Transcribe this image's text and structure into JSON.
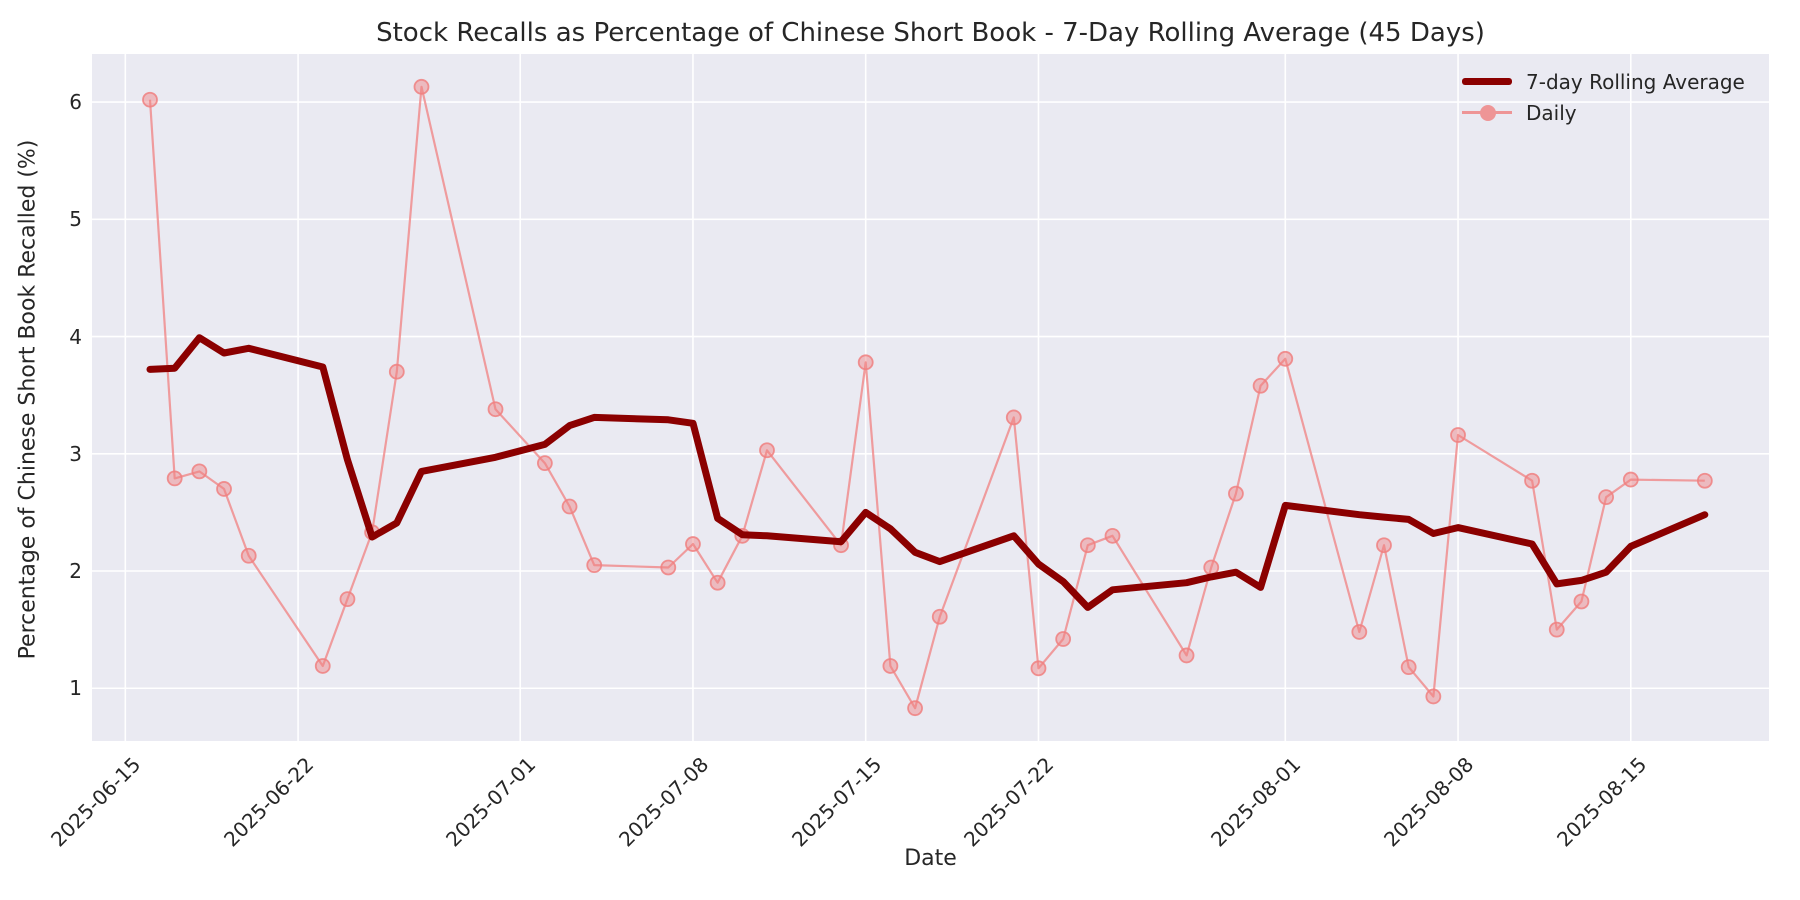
{
  "chart_data": {
    "type": "line",
    "title": "Stock Recalls as Percentage of Chinese Short Book - 7-Day Rolling Average (45 Days)",
    "xlabel": "Date",
    "ylabel": "Percentage of Chinese Short Book Recalled (%)",
    "legend_position": "upper right",
    "grid": true,
    "plot_background": "#eaeaf2",
    "gridline_color": "#ffffff",
    "text_color": "#262626",
    "x_epoch": "2025-06-15",
    "xlim_days_from_epoch": [
      -1.35,
      66.6
    ],
    "ylim": [
      0.55,
      6.41
    ],
    "y_ticks": [
      1,
      2,
      3,
      4,
      5,
      6
    ],
    "x_ticks": [
      "2025-06-15",
      "2025-06-22",
      "2025-07-01",
      "2025-07-08",
      "2025-07-15",
      "2025-07-22",
      "2025-08-01",
      "2025-08-08",
      "2025-08-15"
    ],
    "dates": [
      "2025-06-16",
      "2025-06-17",
      "2025-06-18",
      "2025-06-19",
      "2025-06-20",
      "2025-06-23",
      "2025-06-24",
      "2025-06-25",
      "2025-06-26",
      "2025-06-27",
      "2025-06-30",
      "2025-07-02",
      "2025-07-03",
      "2025-07-04",
      "2025-07-07",
      "2025-07-08",
      "2025-07-09",
      "2025-07-10",
      "2025-07-11",
      "2025-07-14",
      "2025-07-15",
      "2025-07-16",
      "2025-07-17",
      "2025-07-18",
      "2025-07-21",
      "2025-07-22",
      "2025-07-23",
      "2025-07-24",
      "2025-07-25",
      "2025-07-28",
      "2025-07-29",
      "2025-07-30",
      "2025-07-31",
      "2025-08-01",
      "2025-08-04",
      "2025-08-05",
      "2025-08-06",
      "2025-08-07",
      "2025-08-08",
      "2025-08-11",
      "2025-08-12",
      "2025-08-13",
      "2025-08-14",
      "2025-08-15",
      "2025-08-18"
    ],
    "series": [
      {
        "name": "7-day Rolling Average",
        "color": "#8b0000",
        "line_width": 7,
        "marker": "none",
        "values": [
          3.72,
          3.73,
          3.99,
          3.86,
          3.9,
          3.74,
          2.95,
          2.29,
          2.41,
          2.85,
          2.97,
          3.08,
          3.24,
          3.31,
          3.29,
          3.26,
          2.45,
          2.31,
          2.3,
          2.25,
          2.5,
          2.36,
          2.16,
          2.08,
          2.3,
          2.06,
          1.91,
          1.69,
          1.84,
          1.9,
          1.95,
          1.99,
          1.86,
          2.56,
          2.48,
          2.46,
          2.44,
          2.32,
          2.37,
          2.23,
          1.89,
          1.92,
          1.99,
          2.21,
          2.48
        ]
      },
      {
        "name": "Daily",
        "color": "#f08080",
        "opacity": 0.75,
        "line_width": 2.2,
        "marker": "circle",
        "marker_size": 7,
        "values": [
          6.02,
          2.79,
          2.85,
          2.7,
          2.13,
          1.19,
          1.76,
          2.33,
          3.7,
          6.13,
          3.38,
          2.92,
          2.55,
          2.05,
          2.03,
          2.23,
          1.9,
          2.3,
          3.03,
          2.22,
          3.78,
          1.19,
          0.83,
          1.61,
          3.31,
          1.17,
          1.42,
          2.22,
          2.3,
          1.28,
          2.03,
          2.66,
          3.58,
          3.81,
          1.48,
          2.22,
          1.18,
          0.93,
          3.16,
          2.77,
          1.5,
          1.74,
          2.63,
          2.78,
          2.77
        ]
      }
    ]
  }
}
